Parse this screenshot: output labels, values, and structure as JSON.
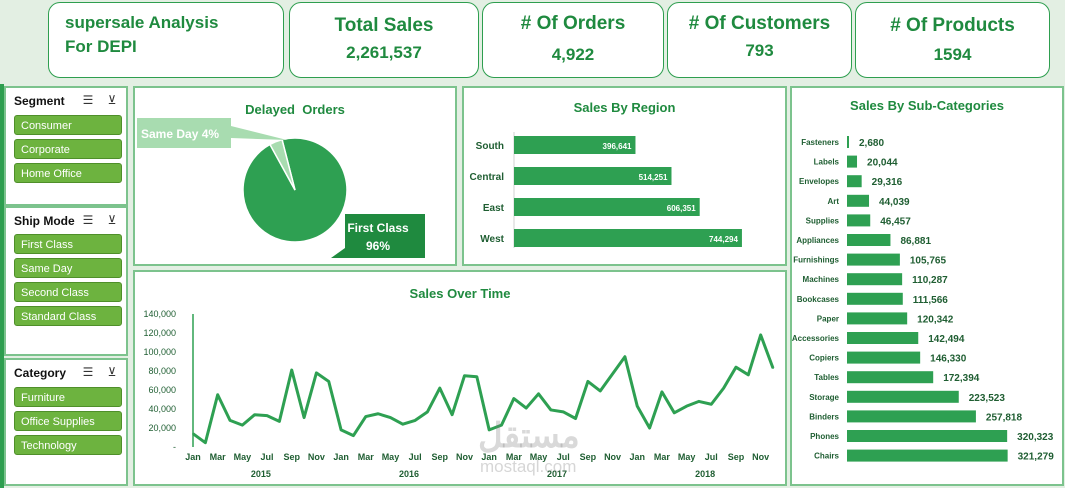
{
  "title": {
    "line1": "supersale Analysis",
    "line2": "For DEPI"
  },
  "kpis": [
    {
      "label": "Total Sales",
      "value": "2,261,537"
    },
    {
      "label": "# Of Orders",
      "value": "4,922"
    },
    {
      "label": "# Of Customers",
      "value": "793"
    },
    {
      "label": "# Of Products",
      "value": "1594"
    }
  ],
  "slicers": {
    "segment": {
      "title": "Segment",
      "items": [
        "Consumer",
        "Corporate",
        "Home Office"
      ]
    },
    "ship_mode": {
      "title": "Ship Mode",
      "items": [
        "First Class",
        "Same Day",
        "Second Class",
        "Standard Class"
      ]
    },
    "category": {
      "title": "Category",
      "items": [
        "Furniture",
        "Office Supplies",
        "Technology"
      ]
    }
  },
  "icons": {
    "multi_select": "multi-select-icon",
    "clear_filter": "clear-filter-icon"
  },
  "colors": {
    "accent": "#1f8a3f",
    "bar": "#2ea052",
    "pie_main": "#2ea052",
    "pie_small": "#a8dcb0",
    "slicer_btn": "#6db33f"
  },
  "watermark": {
    "arabic": "مستقل",
    "latin": "mostaql.com"
  },
  "chart_data": [
    {
      "type": "pie",
      "title": "Delayed  Orders",
      "slices": [
        {
          "label": "First Class",
          "value": 96,
          "display": "96%"
        },
        {
          "label": "Same Day",
          "value": 4,
          "display": "4%"
        }
      ]
    },
    {
      "type": "bar",
      "orientation": "horizontal",
      "title": "Sales By Region",
      "categories": [
        "South",
        "Central",
        "East",
        "West"
      ],
      "values": [
        396641,
        514251,
        606351,
        744294
      ],
      "labels": [
        "396,641",
        "514,251",
        "606,351",
        "744,294"
      ]
    },
    {
      "type": "bar",
      "orientation": "horizontal",
      "title": "Sales By Sub-Categories",
      "categories": [
        "Fasteners",
        "Labels",
        "Envelopes",
        "Art",
        "Supplies",
        "Appliances",
        "Furnishings",
        "Machines",
        "Bookcases",
        "Paper",
        "Accessories",
        "Copiers",
        "Tables",
        "Storage",
        "Binders",
        "Phones",
        "Chairs"
      ],
      "values": [
        2680,
        20044,
        29316,
        44039,
        46457,
        86881,
        105765,
        110287,
        111566,
        120342,
        142494,
        146330,
        172394,
        223523,
        257818,
        320323,
        321279
      ],
      "labels": [
        "2,680",
        "20,044",
        "29,316",
        "44,039",
        "46,457",
        "86,881",
        "105,765",
        "110,287",
        "111,566",
        "120,342",
        "142,494",
        "146,330",
        "172,394",
        "223,523",
        "257,818",
        "320,323",
        "321,279"
      ]
    },
    {
      "type": "line",
      "title": "Sales Over Time",
      "ylim": [
        0,
        140000
      ],
      "yticks": [
        "140,000",
        "120,000",
        "100,000",
        "80,000",
        "60,000",
        "40,000",
        "20,000",
        "-"
      ],
      "month_ticks": [
        "Jan",
        "Mar",
        "May",
        "Jul",
        "Sep",
        "Nov",
        "Jan",
        "Mar",
        "May",
        "Jul",
        "Sep",
        "Nov",
        "Jan",
        "Mar",
        "May",
        "Jul",
        "Sep",
        "Nov",
        "Jan",
        "Mar",
        "May",
        "Jul",
        "Sep",
        "Nov"
      ],
      "years": [
        "2015",
        "2016",
        "2017",
        "2018"
      ],
      "values": [
        14000,
        4500,
        55000,
        28000,
        23000,
        34000,
        33000,
        27000,
        81000,
        31000,
        78000,
        69000,
        18000,
        12000,
        32000,
        35000,
        31000,
        24000,
        28000,
        37000,
        62000,
        34000,
        75000,
        74000,
        18000,
        23000,
        51000,
        41000,
        56000,
        39000,
        37000,
        30000,
        69000,
        59000,
        77000,
        95000,
        43000,
        20000,
        58000,
        36000,
        43000,
        48000,
        45000,
        62000,
        84000,
        76000,
        118000,
        83000
      ]
    }
  ]
}
